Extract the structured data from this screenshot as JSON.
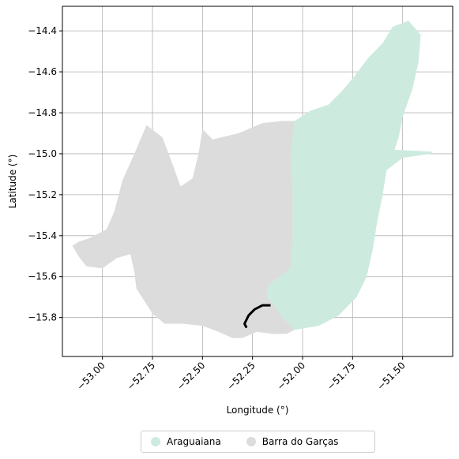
{
  "map": {
    "x_axis": {
      "label": "Longitude (°)",
      "range": [
        -53.2,
        -51.25
      ],
      "ticks": [
        -53.0,
        -52.75,
        -52.5,
        -52.25,
        -52.0,
        -51.75,
        -51.5
      ],
      "tick_labels": [
        "−53.00",
        "−52.75",
        "−52.50",
        "−52.25",
        "−52.00",
        "−51.75",
        "−51.50"
      ]
    },
    "y_axis": {
      "label": "Latitude (°)",
      "range": [
        -15.99,
        -14.28
      ],
      "ticks": [
        -15.8,
        -15.6,
        -15.4,
        -15.2,
        -15.0,
        -14.8,
        -14.6,
        -14.4
      ],
      "tick_labels": [
        "−15.8",
        "−15.6",
        "−15.4",
        "−15.2",
        "−15.0",
        "−14.8",
        "−14.6",
        "−14.4"
      ]
    },
    "grid": true,
    "regions": [
      {
        "name": "Barra do Garças",
        "color": "#dcdcdc",
        "coords": [
          [
            -53.15,
            -15.45
          ],
          [
            -53.12,
            -15.5
          ],
          [
            -53.08,
            -15.55
          ],
          [
            -53.0,
            -15.56
          ],
          [
            -52.93,
            -15.51
          ],
          [
            -52.86,
            -15.49
          ],
          [
            -52.84,
            -15.58
          ],
          [
            -52.83,
            -15.66
          ],
          [
            -52.79,
            -15.72
          ],
          [
            -52.75,
            -15.78
          ],
          [
            -52.69,
            -15.83
          ],
          [
            -52.6,
            -15.83
          ],
          [
            -52.5,
            -15.84
          ],
          [
            -52.42,
            -15.87
          ],
          [
            -52.35,
            -15.9
          ],
          [
            -52.3,
            -15.9
          ],
          [
            -52.23,
            -15.87
          ],
          [
            -52.15,
            -15.88
          ],
          [
            -52.08,
            -15.88
          ],
          [
            -52.04,
            -15.86
          ],
          [
            -52.1,
            -15.8
          ],
          [
            -52.15,
            -15.73
          ],
          [
            -52.18,
            -15.7
          ],
          [
            -52.17,
            -15.64
          ],
          [
            -52.06,
            -15.56
          ],
          [
            -52.05,
            -15.4
          ],
          [
            -52.05,
            -15.2
          ],
          [
            -52.06,
            -15.0
          ],
          [
            -52.02,
            -14.84
          ],
          [
            -52.1,
            -14.84
          ],
          [
            -52.2,
            -14.85
          ],
          [
            -52.32,
            -14.9
          ],
          [
            -52.45,
            -14.93
          ],
          [
            -52.5,
            -14.88
          ],
          [
            -52.52,
            -15.0
          ],
          [
            -52.55,
            -15.12
          ],
          [
            -52.61,
            -15.16
          ],
          [
            -52.65,
            -15.05
          ],
          [
            -52.7,
            -14.92
          ],
          [
            -52.78,
            -14.86
          ],
          [
            -52.84,
            -15.0
          ],
          [
            -52.9,
            -15.13
          ],
          [
            -52.94,
            -15.28
          ],
          [
            -52.98,
            -15.37
          ],
          [
            -53.06,
            -15.41
          ],
          [
            -53.12,
            -15.43
          ]
        ]
      },
      {
        "name": "Araguaiana",
        "color": "#cdeade",
        "coords": [
          [
            -52.04,
            -14.84
          ],
          [
            -51.96,
            -14.79
          ],
          [
            -51.87,
            -14.76
          ],
          [
            -51.8,
            -14.69
          ],
          [
            -51.74,
            -14.62
          ],
          [
            -51.67,
            -14.53
          ],
          [
            -51.6,
            -14.46
          ],
          [
            -51.55,
            -14.38
          ],
          [
            -51.47,
            -14.35
          ],
          [
            -51.41,
            -14.42
          ],
          [
            -51.42,
            -14.55
          ],
          [
            -51.45,
            -14.68
          ],
          [
            -51.5,
            -14.82
          ],
          [
            -51.52,
            -14.92
          ],
          [
            -51.54,
            -14.98
          ],
          [
            -51.35,
            -14.99
          ],
          [
            -51.36,
            -15.0
          ],
          [
            -51.5,
            -15.02
          ],
          [
            -51.58,
            -15.08
          ],
          [
            -51.6,
            -15.2
          ],
          [
            -51.63,
            -15.35
          ],
          [
            -51.65,
            -15.47
          ],
          [
            -51.68,
            -15.6
          ],
          [
            -51.73,
            -15.7
          ],
          [
            -51.82,
            -15.79
          ],
          [
            -51.92,
            -15.84
          ],
          [
            -52.04,
            -15.86
          ],
          [
            -52.1,
            -15.8
          ],
          [
            -52.15,
            -15.73
          ],
          [
            -52.18,
            -15.7
          ],
          [
            -52.17,
            -15.64
          ],
          [
            -52.06,
            -15.56
          ],
          [
            -52.05,
            -15.4
          ],
          [
            -52.05,
            -15.2
          ],
          [
            -52.06,
            -15.0
          ]
        ]
      }
    ],
    "river": {
      "color": "#000000",
      "coords": [
        [
          -52.16,
          -15.74
        ],
        [
          -52.2,
          -15.74
        ],
        [
          -52.24,
          -15.76
        ],
        [
          -52.27,
          -15.79
        ],
        [
          -52.29,
          -15.83
        ],
        [
          -52.28,
          -15.85
        ]
      ]
    },
    "legend": {
      "placement": "bottom-center",
      "entries": [
        {
          "label": "Araguaiana",
          "color": "#cdeade"
        },
        {
          "label": "Barra do Garças",
          "color": "#dcdcdc"
        }
      ]
    }
  }
}
